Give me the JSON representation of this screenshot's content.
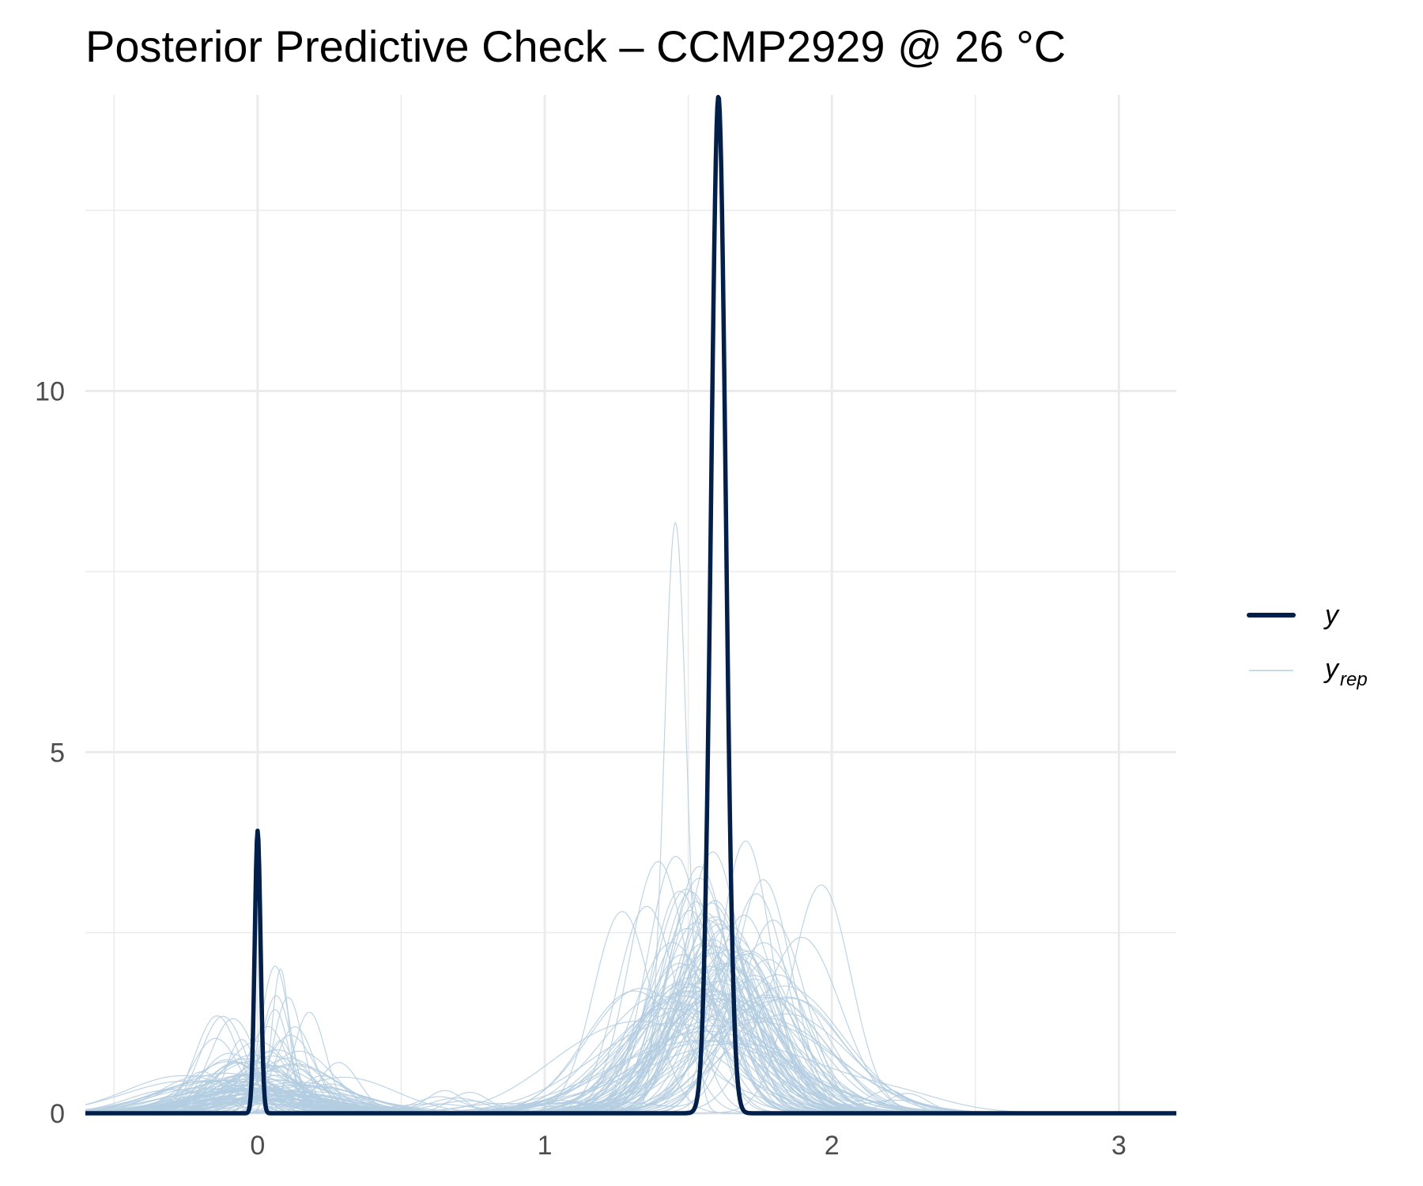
{
  "chart_data": {
    "type": "line",
    "title": "Posterior Predictive Check – CCMP2929 @ 26 °C",
    "xlabel": "",
    "ylabel": "",
    "xlim": [
      -0.6,
      3.2
    ],
    "ylim": [
      0,
      14.1
    ],
    "x_ticks": [
      0,
      1,
      2,
      3
    ],
    "x_tick_labels": [
      "0",
      "1",
      "2",
      "3"
    ],
    "y_ticks": [
      0,
      5,
      10
    ],
    "y_tick_labels": [
      "0",
      "5",
      "10"
    ],
    "grid": true,
    "legend_position": "right",
    "colors": {
      "y": "#011f4b",
      "yrep": "#b3cde0",
      "grid": "#ebebeb"
    },
    "series": [
      {
        "name": "y",
        "kind": "observed",
        "components": [
          {
            "weight": 0.1,
            "mean": 0.0,
            "sd": 0.0102
          },
          {
            "weight": 0.9,
            "mean": 1.605,
            "sd": 0.0255
          }
        ]
      },
      {
        "name": "y_rep",
        "kind": "replicated",
        "draws": 100,
        "examples": [
          {
            "components": [
              {
                "weight": 0.82,
                "mean": 1.455,
                "sd": 0.04
              },
              {
                "weight": 0.18,
                "mean": 0.06,
                "sd": 0.05
              }
            ]
          },
          {
            "components": [
              {
                "weight": 0.7,
                "mean": 1.27,
                "sd": 0.1
              },
              {
                "weight": 0.3,
                "mean": 0.0,
                "sd": 0.12
              }
            ]
          },
          {
            "components": [
              {
                "weight": 0.85,
                "mean": 1.7,
                "sd": 0.09
              },
              {
                "weight": 0.15,
                "mean": 0.08,
                "sd": 0.03
              }
            ]
          }
        ]
      }
    ],
    "legend": [
      {
        "label": "y",
        "subscript": ""
      },
      {
        "label": "y",
        "subscript": "rep"
      }
    ]
  }
}
